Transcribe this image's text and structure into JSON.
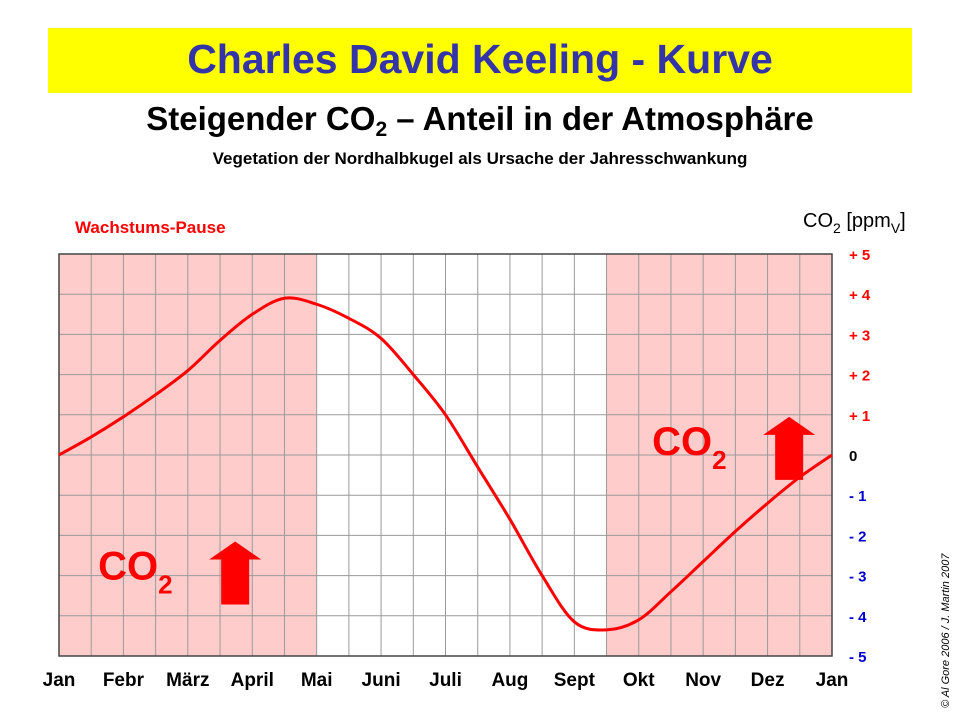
{
  "header": {
    "title": "Charles David Keeling - Kurve",
    "subtitle_main": "Steigender CO",
    "subtitle_sub": "2",
    "subtitle_rest": " – Anteil in der Atmosphäre",
    "caption": "Vegetation der Nordhalbkugel als Ursache der Jahresschwankung"
  },
  "copyright": "© Al Gore 2006 / J. Martin 2007",
  "colors": {
    "banner": "#ffff00",
    "title": "#3333aa",
    "shade": "#ffcccc",
    "curve": "#ff0000",
    "positive_ticks": "#ff0000",
    "negative_ticks": "#0000cc",
    "grid": "#9a9a9a"
  },
  "chart_data": {
    "type": "line",
    "title": "Charles David Keeling - Kurve",
    "ylabel_main": "CO",
    "ylabel_sub": "2",
    "ylabel_unit": " [ppm",
    "ylabel_unit_sub": "V",
    "ylabel_end": "]",
    "ylim": [
      -5,
      5
    ],
    "xlim": [
      0,
      12
    ],
    "x_ticks": [
      {
        "label": "Jan",
        "x": 0
      },
      {
        "label": "Febr",
        "x": 1
      },
      {
        "label": "März",
        "x": 2
      },
      {
        "label": "April",
        "x": 3
      },
      {
        "label": "Mai",
        "x": 4
      },
      {
        "label": "Juni",
        "x": 5
      },
      {
        "label": "Juli",
        "x": 6
      },
      {
        "label": "Aug",
        "x": 7
      },
      {
        "label": "Sept",
        "x": 8
      },
      {
        "label": "Okt",
        "x": 9
      },
      {
        "label": "Nov",
        "x": 10
      },
      {
        "label": "Dez",
        "x": 11
      },
      {
        "label": "Jan",
        "x": 12
      }
    ],
    "y_ticks": [
      {
        "label": "+ 5",
        "y": 5
      },
      {
        "label": "+ 4",
        "y": 4
      },
      {
        "label": "+ 3",
        "y": 3
      },
      {
        "label": "+ 2",
        "y": 2
      },
      {
        "label": "+ 1",
        "y": 1
      },
      {
        "label": "0",
        "y": 0
      },
      {
        "label": "- 1",
        "y": -1
      },
      {
        "label": "- 2",
        "y": -2
      },
      {
        "label": "- 3",
        "y": -3
      },
      {
        "label": "- 4",
        "y": -4
      },
      {
        "label": "- 5",
        "y": -5
      }
    ],
    "series": [
      {
        "x": [
          0,
          0.5,
          1,
          1.5,
          2,
          2.5,
          3,
          3.5,
          4,
          4.5,
          5,
          5.5,
          6,
          6.5,
          7,
          7.5,
          8,
          8.5,
          9,
          9.5,
          10,
          10.5,
          11,
          11.5,
          12
        ],
        "y": [
          0,
          0.45,
          0.95,
          1.5,
          2.1,
          2.85,
          3.5,
          3.9,
          3.75,
          3.4,
          2.9,
          2.0,
          1.0,
          -0.3,
          -1.6,
          -3.0,
          -4.15,
          -4.35,
          -4.1,
          -3.4,
          -2.65,
          -1.9,
          -1.2,
          -0.55,
          0
        ]
      }
    ],
    "shaded_regions": [
      {
        "x0": 0,
        "x1": 4,
        "label": "Wachstums-Pause"
      },
      {
        "x0": 8.5,
        "x1": 12
      }
    ],
    "annotations": [
      {
        "text": "CO",
        "sub": "2",
        "x": 1.4,
        "y": -2.6,
        "arrow": "up"
      },
      {
        "text": "CO",
        "sub": "2",
        "x": 10.0,
        "y": 0.5,
        "arrow": "up"
      }
    ]
  }
}
